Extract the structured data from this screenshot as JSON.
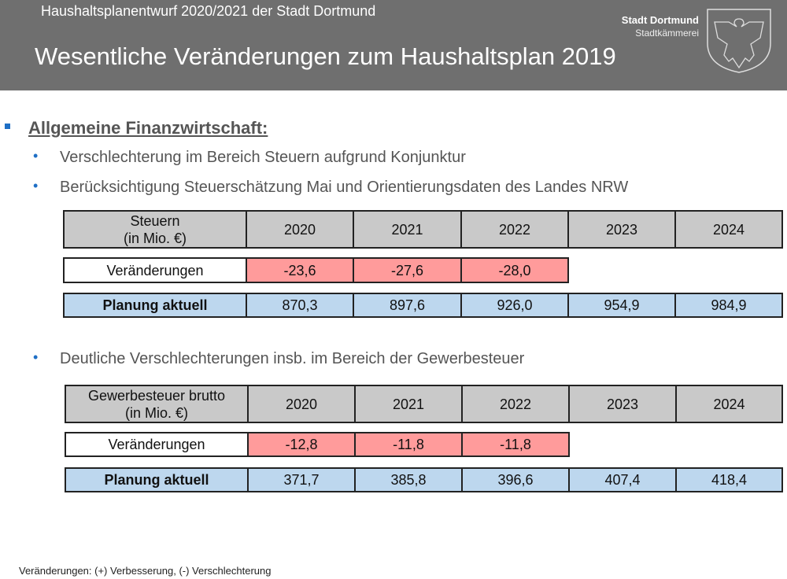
{
  "header": {
    "supertitle": "Haushaltsplanentwurf 2020/2021 der Stadt Dortmund",
    "title": "Wesentliche Veränderungen zum Haushaltsplan 2019",
    "brand": "Stadt Dortmund",
    "department": "Stadtkämmerei",
    "logo_icon": "dortmund-eagle-crest"
  },
  "section": {
    "heading": "Allgemeine Finanzwirtschaft:",
    "bullets": [
      "Verschlechterung im Bereich Steuern aufgrund Konjunktur",
      "Berücksichtigung Steuerschätzung Mai und Orientierungsdaten des Landes NRW",
      "Deutliche Verschlechterungen insb. im Bereich der Gewerbesteuer"
    ]
  },
  "tables": [
    {
      "header_label": [
        "Steuern",
        "(in Mio. €)"
      ],
      "years": [
        "2020",
        "2021",
        "2022",
        "2023",
        "2024"
      ],
      "change_label": "Veränderungen",
      "changes": [
        "-23,6",
        "-27,6",
        "-28,0"
      ],
      "plan_label": "Planung aktuell",
      "plan": [
        "870,3",
        "897,6",
        "926,0",
        "954,9",
        "984,9"
      ]
    },
    {
      "header_label": [
        "Gewerbesteuer brutto",
        "(in Mio. €)"
      ],
      "years": [
        "2020",
        "2021",
        "2022",
        "2023",
        "2024"
      ],
      "change_label": "Veränderungen",
      "changes": [
        "-12,8",
        "-11,8",
        "-11,8"
      ],
      "plan_label": "Planung aktuell",
      "plan": [
        "371,7",
        "385,8",
        "396,6",
        "407,4",
        "418,4"
      ]
    }
  ],
  "footnote": "Veränderungen: (+) Verbesserung, (-) Verschlechterung",
  "colors": {
    "header_bg": "#6f6f6f",
    "accent": "#1f6fc5",
    "change_bg": "#ff9b9b",
    "plan_bg": "#bdd7ee",
    "head_bg": "#c9c9c9"
  }
}
